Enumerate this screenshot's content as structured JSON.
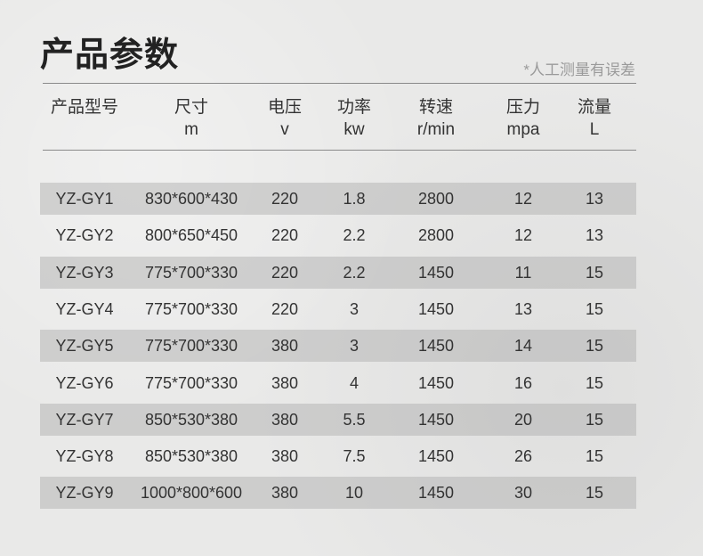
{
  "title": "产品参数",
  "note": "*人工测量有误差",
  "columns": [
    {
      "label": "产品型号",
      "unit": ""
    },
    {
      "label": "尺寸",
      "unit": "m"
    },
    {
      "label": "电压",
      "unit": "v"
    },
    {
      "label": "功率",
      "unit": "kw"
    },
    {
      "label": "转速",
      "unit": "r/min"
    },
    {
      "label": "压力",
      "unit": "mpa"
    },
    {
      "label": "流量",
      "unit": "L"
    }
  ],
  "rows": [
    [
      "YZ-GY1",
      "830*600*430",
      "220",
      "1.8",
      "2800",
      "12",
      "13"
    ],
    [
      "YZ-GY2",
      "800*650*450",
      "220",
      "2.2",
      "2800",
      "12",
      "13"
    ],
    [
      "YZ-GY3",
      "775*700*330",
      "220",
      "2.2",
      "1450",
      "11",
      "15"
    ],
    [
      "YZ-GY4",
      "775*700*330",
      "220",
      "3",
      "1450",
      "13",
      "15"
    ],
    [
      "YZ-GY5",
      "775*700*330",
      "380",
      "3",
      "1450",
      "14",
      "15"
    ],
    [
      "YZ-GY6",
      "775*700*330",
      "380",
      "4",
      "1450",
      "16",
      "15"
    ],
    [
      "YZ-GY7",
      "850*530*380",
      "380",
      "5.5",
      "1450",
      "20",
      "15"
    ],
    [
      "YZ-GY8",
      "850*530*380",
      "380",
      "7.5",
      "1450",
      "26",
      "15"
    ],
    [
      "YZ-GY9",
      "1000*800*600",
      "380",
      "10",
      "1450",
      "30",
      "15"
    ]
  ]
}
